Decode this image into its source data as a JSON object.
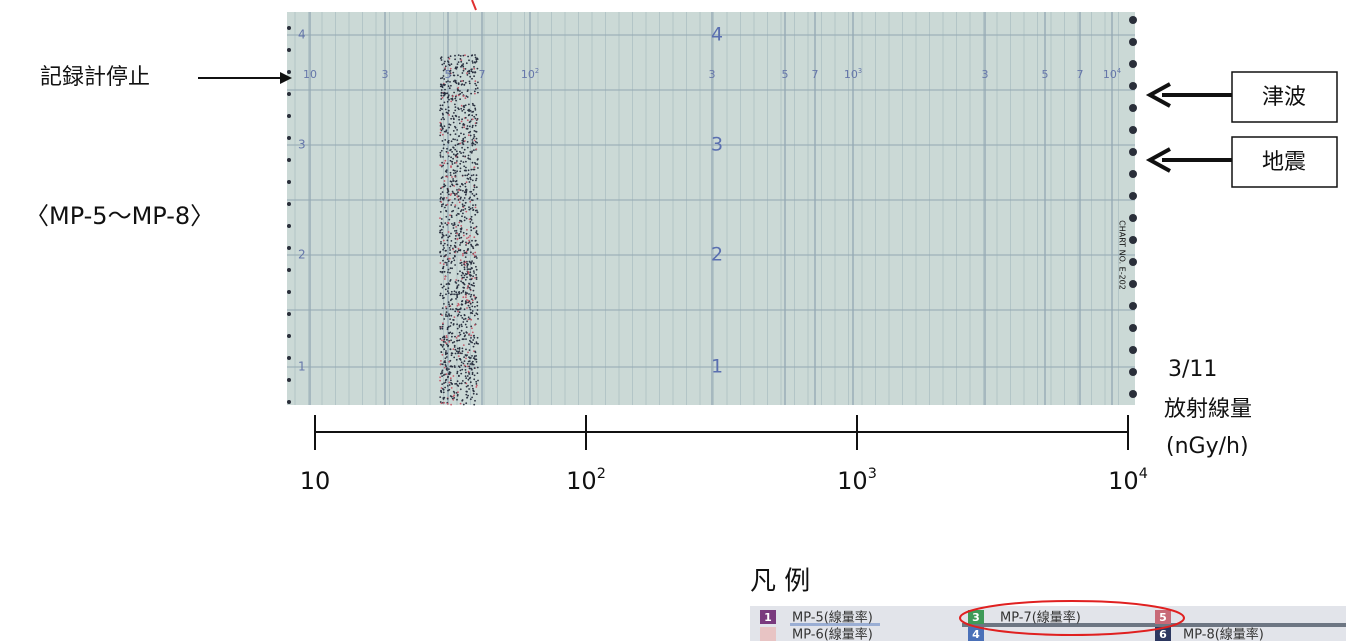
{
  "annotations": {
    "stop": "記録計停止",
    "tsunami": "津波",
    "earthquake": "地震",
    "range": "〈MP-5〜MP-8〉",
    "date": "3/11",
    "quantity": "放射線量",
    "unit": "(nGy/h)"
  },
  "scale": {
    "ticks": [
      {
        "base": "10"
      },
      {
        "base": "10",
        "exp": "2"
      },
      {
        "base": "10",
        "exp": "3"
      },
      {
        "base": "10",
        "exp": "4"
      }
    ]
  },
  "paper": {
    "top_labels": [
      {
        "text": "10"
      },
      {
        "text": "3"
      },
      {
        "text": "5"
      },
      {
        "text": "7"
      },
      {
        "text": "10",
        "exp": "2"
      },
      {
        "text": "3"
      },
      {
        "text": "5"
      },
      {
        "text": "7"
      },
      {
        "text": "10",
        "exp": "3"
      },
      {
        "text": "3"
      },
      {
        "text": "5"
      },
      {
        "text": "7"
      },
      {
        "text": "10",
        "exp": "4"
      }
    ],
    "row_labels": [
      "4",
      "3",
      "2",
      "1"
    ],
    "chart_no": "CHART NO. E-202"
  },
  "legend": {
    "title": "凡 例",
    "items": [
      {
        "num": "1",
        "label": "MP-5(線量率)"
      },
      {
        "label": "MP-6(線量率)"
      },
      {
        "num": "3",
        "label": "MP-7(線量率)"
      },
      {
        "num": "4"
      },
      {
        "num": "5"
      },
      {
        "num": "6",
        "label": "MP-8(線量率)"
      }
    ]
  }
}
